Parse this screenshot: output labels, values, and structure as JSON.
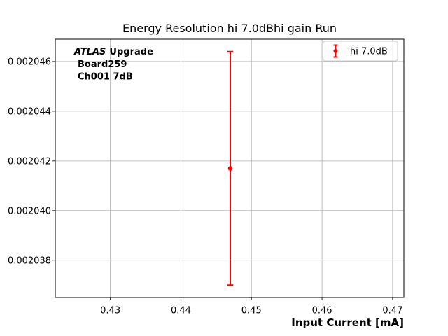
{
  "figure": {
    "background": "#ffffff"
  },
  "annotation": {
    "line1_italic": "ATLAS",
    "line1_bold": "Upgrade",
    "line2": "Board259",
    "line3": "Ch001 7dB"
  },
  "legend": {
    "entries": [
      {
        "label": "hi 7.0dB",
        "marker": "errorbar-point-icon",
        "color": "#ff0000"
      }
    ]
  },
  "chart_data": {
    "type": "scatter",
    "title": "Energy Resolution hi 7.0dBhi gain Run",
    "xlabel": "Input Current [mA]",
    "ylabel": "",
    "grid": true,
    "legend_position": "upper right",
    "xlim": [
      0.4222,
      0.4716
    ],
    "ylim": [
      0.0020365,
      0.0020469
    ],
    "xticks": [
      0.43,
      0.44,
      0.45,
      0.46,
      0.47
    ],
    "xtick_labels": [
      "0.43",
      "0.44",
      "0.45",
      "0.46",
      "0.47"
    ],
    "yticks": [
      0.002038,
      0.00204,
      0.002042,
      0.002044,
      0.002046
    ],
    "ytick_labels": [
      "0.002038",
      "0.002040",
      "0.002042",
      "0.002044",
      "0.002046"
    ],
    "series": [
      {
        "name": "hi 7.0dB",
        "color": "#ff0000",
        "marker": "circle",
        "points": [
          {
            "x": 0.447,
            "y": 0.0020417,
            "yerr": 4.7e-06
          }
        ]
      }
    ],
    "colors": {
      "grid": "#b0b0b0",
      "spine": "#000000",
      "text": "#000000",
      "legend_border": "#cccccc",
      "series": "#ff0000"
    }
  }
}
